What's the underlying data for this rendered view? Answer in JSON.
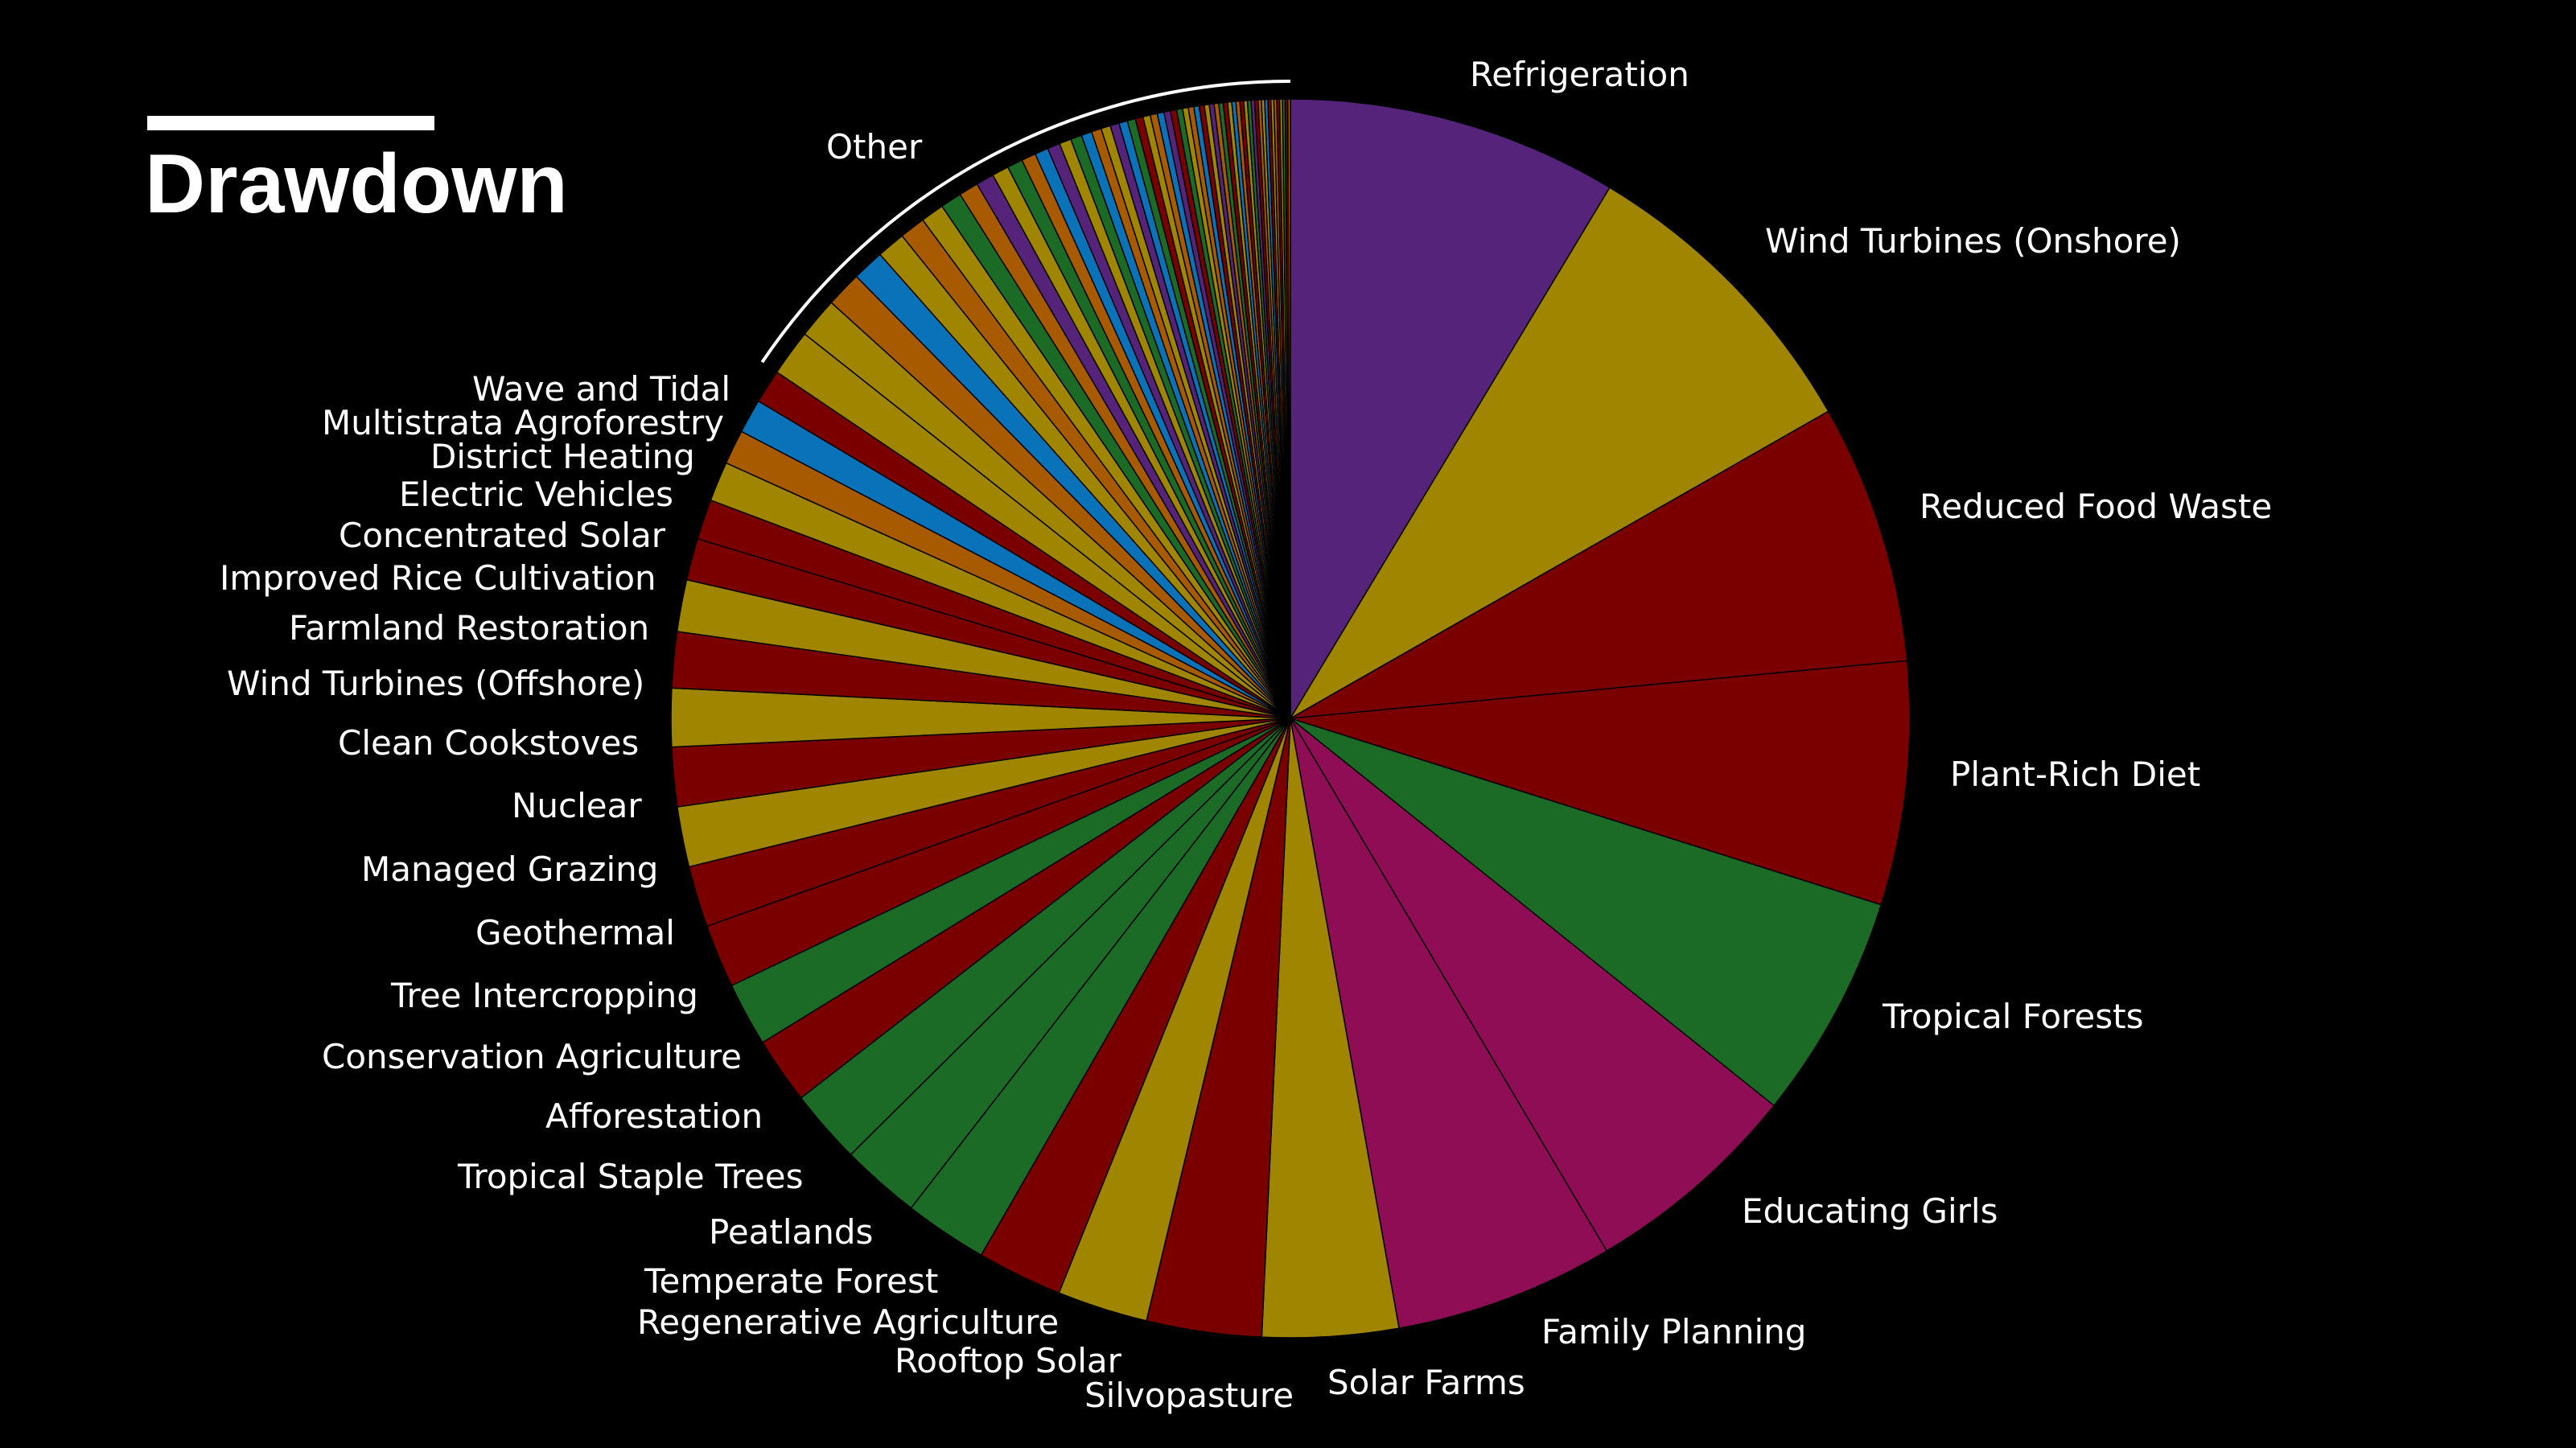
{
  "title": "Drawdown",
  "colors": {
    "purple": "#55247a",
    "gold": "#9f8500",
    "darkred": "#7a0000",
    "green": "#1b6b26",
    "magenta": "#8e0d55",
    "blue": "#0a72b8",
    "orange": "#a85a00",
    "background": "#000000",
    "text": "#ffffff"
  },
  "chart_data": {
    "type": "pie",
    "title": "Drawdown",
    "legend": "none",
    "slices": [
      {
        "label": "Refrigeration",
        "value": 89.74,
        "color": "purple"
      },
      {
        "label": "Wind Turbines (Onshore)",
        "value": 84.6,
        "color": "gold"
      },
      {
        "label": "Reduced Food Waste",
        "value": 70.53,
        "color": "darkred"
      },
      {
        "label": "Plant-Rich Diet",
        "value": 66.11,
        "color": "darkred"
      },
      {
        "label": "Tropical Forests",
        "value": 61.23,
        "color": "green"
      },
      {
        "label": "Educating Girls",
        "value": 59.6,
        "color": "magenta"
      },
      {
        "label": "Family Planning",
        "value": 59.6,
        "color": "magenta"
      },
      {
        "label": "Solar Farms",
        "value": 36.9,
        "color": "gold"
      },
      {
        "label": "Silvopasture",
        "value": 31.19,
        "color": "darkred"
      },
      {
        "label": "Rooftop Solar",
        "value": 24.6,
        "color": "gold"
      },
      {
        "label": "Regenerative Agriculture",
        "value": 23.15,
        "color": "darkred"
      },
      {
        "label": "Temperate Forest",
        "value": 22.61,
        "color": "green"
      },
      {
        "label": "Peatlands",
        "value": 21.57,
        "color": "green"
      },
      {
        "label": "Tropical Staple Trees",
        "value": 20.19,
        "color": "green"
      },
      {
        "label": "Afforestation",
        "value": 18.06,
        "color": "darkred"
      },
      {
        "label": "Conservation Agriculture",
        "value": 17.35,
        "color": "green"
      },
      {
        "label": "Tree Intercropping",
        "value": 17.2,
        "color": "darkred"
      },
      {
        "label": "Geothermal",
        "value": 16.6,
        "color": "darkred"
      },
      {
        "label": "Managed Grazing",
        "value": 16.34,
        "color": "gold"
      },
      {
        "label": "Nuclear",
        "value": 16.09,
        "color": "darkred"
      },
      {
        "label": "Clean Cookstoves",
        "value": 15.81,
        "color": "gold"
      },
      {
        "label": "Wind Turbines (Offshore)",
        "value": 15.2,
        "color": "darkred"
      },
      {
        "label": "Farmland Restoration",
        "value": 14.08,
        "color": "gold"
      },
      {
        "label": "Improved Rice Cultivation",
        "value": 11.34,
        "color": "darkred"
      },
      {
        "label": "Concentrated Solar",
        "value": 10.9,
        "color": "darkred"
      },
      {
        "label": "Electric Vehicles",
        "value": 10.8,
        "color": "gold"
      },
      {
        "label": "District Heating",
        "value": 9.38,
        "color": "orange"
      },
      {
        "label": "Multistrata Agroforestry",
        "value": 9.28,
        "color": "blue"
      },
      {
        "label": "Wave and Tidal",
        "value": 9.2,
        "color": "darkred"
      },
      {
        "label": "Other",
        "value": 162.0,
        "color": "mixed"
      }
    ],
    "other_segment_colors": [
      "gold",
      "gold",
      "orange",
      "blue",
      "gold",
      "orange",
      "gold",
      "green",
      "orange",
      "purple",
      "gold",
      "green",
      "orange",
      "blue",
      "purple",
      "gold",
      "green",
      "blue",
      "orange",
      "gold",
      "purple",
      "blue",
      "green",
      "darkred",
      "gold",
      "orange",
      "blue",
      "purple",
      "darkred",
      "green",
      "gold",
      "orange",
      "blue",
      "darkred",
      "gold",
      "purple",
      "orange",
      "green",
      "darkred",
      "gold",
      "blue",
      "orange",
      "darkred",
      "gold",
      "green",
      "purple",
      "darkred",
      "orange",
      "gold",
      "blue",
      "darkred",
      "gold",
      "orange",
      "darkred",
      "gold",
      "green",
      "darkred",
      "orange"
    ]
  }
}
